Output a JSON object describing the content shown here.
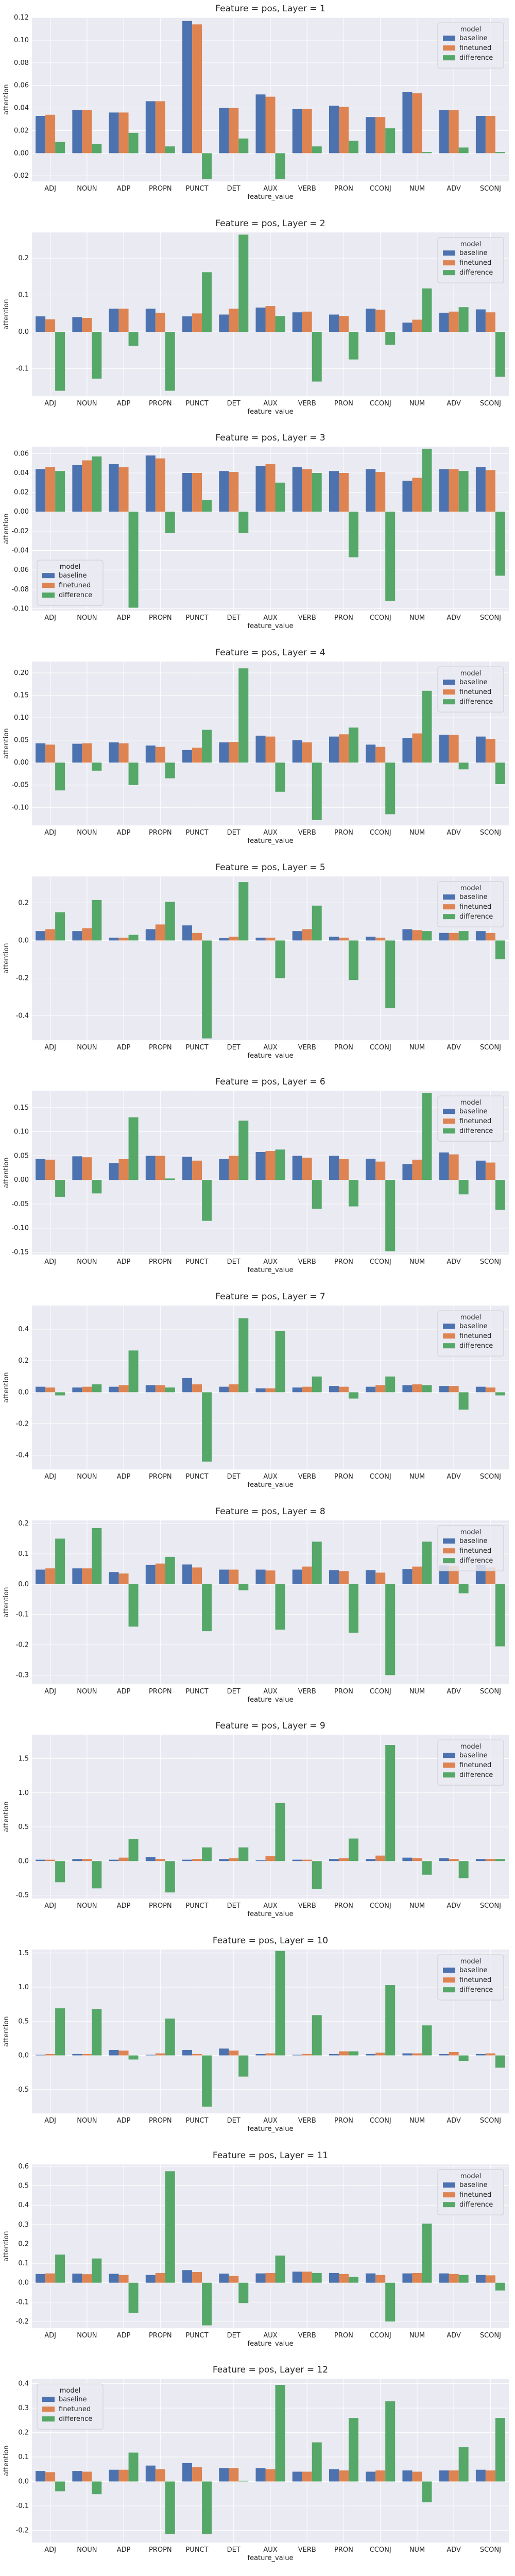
{
  "colors": {
    "baseline": "#4c72b0",
    "finetuned": "#dd8452",
    "difference": "#55a868"
  },
  "legend_title": "model",
  "chart_data": [
    {
      "type": "bar",
      "title": "Feature = pos, Layer = 1",
      "xlabel": "feature_value",
      "ylabel": "attention",
      "categories": [
        "ADJ",
        "NOUN",
        "ADP",
        "PROPN",
        "PUNCT",
        "DET",
        "AUX",
        "VERB",
        "PRON",
        "CCONJ",
        "NUM",
        "ADV",
        "SCONJ"
      ],
      "ylim": [
        -0.025,
        0.12
      ],
      "yticks": [
        -0.02,
        0.0,
        0.02,
        0.04,
        0.06,
        0.08,
        0.1,
        0.12
      ],
      "grid": true,
      "legend_position": "top-right",
      "series": [
        {
          "name": "baseline",
          "values": [
            0.033,
            0.038,
            0.036,
            0.046,
            0.117,
            0.04,
            0.052,
            0.039,
            0.042,
            0.032,
            0.054,
            0.038,
            0.033
          ]
        },
        {
          "name": "finetuned",
          "values": [
            0.034,
            0.038,
            0.036,
            0.046,
            0.114,
            0.04,
            0.05,
            0.039,
            0.041,
            0.032,
            0.053,
            0.038,
            0.033
          ]
        },
        {
          "name": "difference",
          "values": [
            0.01,
            0.008,
            0.018,
            0.006,
            -0.023,
            0.013,
            -0.023,
            0.006,
            0.011,
            0.022,
            0.001,
            0.005,
            0.001
          ]
        }
      ]
    },
    {
      "type": "bar",
      "title": "Feature = pos, Layer = 2",
      "xlabel": "feature_value",
      "ylabel": "attention",
      "categories": [
        "ADJ",
        "NOUN",
        "ADP",
        "PROPN",
        "PUNCT",
        "DET",
        "AUX",
        "VERB",
        "PRON",
        "CCONJ",
        "NUM",
        "ADV",
        "SCONJ"
      ],
      "ylim": [
        -0.175,
        0.27
      ],
      "yticks": [
        -0.1,
        0.0,
        0.1,
        0.2
      ],
      "grid": true,
      "legend_position": "top-right",
      "series": [
        {
          "name": "baseline",
          "values": [
            0.042,
            0.04,
            0.063,
            0.063,
            0.042,
            0.047,
            0.066,
            0.053,
            0.047,
            0.063,
            0.025,
            0.052,
            0.061
          ]
        },
        {
          "name": "finetuned",
          "values": [
            0.034,
            0.038,
            0.063,
            0.052,
            0.05,
            0.063,
            0.07,
            0.055,
            0.043,
            0.06,
            0.033,
            0.055,
            0.053
          ]
        },
        {
          "name": "difference",
          "values": [
            -0.16,
            -0.127,
            -0.038,
            -0.16,
            0.162,
            0.264,
            0.043,
            -0.135,
            -0.075,
            -0.035,
            0.118,
            0.067,
            -0.122
          ]
        }
      ]
    },
    {
      "type": "bar",
      "title": "Feature = pos, Layer = 3",
      "xlabel": "feature_value",
      "ylabel": "attention",
      "categories": [
        "ADJ",
        "NOUN",
        "ADP",
        "PROPN",
        "PUNCT",
        "DET",
        "AUX",
        "VERB",
        "PRON",
        "CCONJ",
        "NUM",
        "ADV",
        "SCONJ"
      ],
      "ylim": [
        -0.102,
        0.067
      ],
      "yticks": [
        -0.1,
        -0.08,
        -0.06,
        -0.04,
        -0.02,
        0.0,
        0.02,
        0.04,
        0.06
      ],
      "grid": true,
      "legend_position": "bottom-left",
      "series": [
        {
          "name": "baseline",
          "values": [
            0.044,
            0.048,
            0.049,
            0.058,
            0.04,
            0.042,
            0.047,
            0.046,
            0.042,
            0.044,
            0.032,
            0.044,
            0.046
          ]
        },
        {
          "name": "finetuned",
          "values": [
            0.046,
            0.053,
            0.046,
            0.055,
            0.04,
            0.041,
            0.049,
            0.044,
            0.04,
            0.041,
            0.035,
            0.044,
            0.043
          ]
        },
        {
          "name": "difference",
          "values": [
            0.042,
            0.057,
            -0.099,
            -0.022,
            0.012,
            -0.022,
            0.03,
            0.04,
            -0.047,
            -0.092,
            0.065,
            0.042,
            -0.066
          ]
        }
      ]
    },
    {
      "type": "bar",
      "title": "Feature = pos, Layer = 4",
      "xlabel": "feature_value",
      "ylabel": "attention",
      "categories": [
        "ADJ",
        "NOUN",
        "ADP",
        "PROPN",
        "PUNCT",
        "DET",
        "AUX",
        "VERB",
        "PRON",
        "CCONJ",
        "NUM",
        "ADV",
        "SCONJ"
      ],
      "ylim": [
        -0.14,
        0.225
      ],
      "yticks": [
        -0.1,
        -0.05,
        0.0,
        0.05,
        0.1,
        0.15,
        0.2
      ],
      "grid": true,
      "legend_position": "top-right",
      "series": [
        {
          "name": "baseline",
          "values": [
            0.043,
            0.042,
            0.045,
            0.038,
            0.028,
            0.045,
            0.06,
            0.05,
            0.058,
            0.04,
            0.055,
            0.062,
            0.058
          ]
        },
        {
          "name": "finetuned",
          "values": [
            0.04,
            0.043,
            0.043,
            0.035,
            0.033,
            0.046,
            0.058,
            0.045,
            0.063,
            0.035,
            0.065,
            0.062,
            0.053
          ]
        },
        {
          "name": "difference",
          "values": [
            -0.062,
            -0.018,
            -0.05,
            -0.035,
            0.073,
            0.21,
            -0.065,
            -0.128,
            0.078,
            -0.115,
            0.16,
            -0.015,
            -0.048
          ]
        }
      ]
    },
    {
      "type": "bar",
      "title": "Feature = pos, Layer = 5",
      "xlabel": "feature_value",
      "ylabel": "attention",
      "categories": [
        "ADJ",
        "NOUN",
        "ADP",
        "PROPN",
        "PUNCT",
        "DET",
        "AUX",
        "VERB",
        "PRON",
        "CCONJ",
        "NUM",
        "ADV",
        "SCONJ"
      ],
      "ylim": [
        -0.53,
        0.34
      ],
      "yticks": [
        -0.4,
        -0.2,
        0.0,
        0.2
      ],
      "grid": true,
      "legend_position": "top-right",
      "series": [
        {
          "name": "baseline",
          "values": [
            0.05,
            0.05,
            0.015,
            0.06,
            0.08,
            0.012,
            0.015,
            0.05,
            0.02,
            0.02,
            0.06,
            0.04,
            0.05
          ]
        },
        {
          "name": "finetuned",
          "values": [
            0.06,
            0.065,
            0.015,
            0.085,
            0.04,
            0.02,
            0.015,
            0.06,
            0.015,
            0.015,
            0.055,
            0.04,
            0.04
          ]
        },
        {
          "name": "difference",
          "values": [
            0.15,
            0.215,
            0.03,
            0.205,
            -0.52,
            0.31,
            -0.2,
            0.185,
            -0.21,
            -0.36,
            0.05,
            0.05,
            -0.1
          ]
        }
      ]
    },
    {
      "type": "bar",
      "title": "Feature = pos, Layer = 6",
      "xlabel": "feature_value",
      "ylabel": "attention",
      "categories": [
        "ADJ",
        "NOUN",
        "ADP",
        "PROPN",
        "PUNCT",
        "DET",
        "AUX",
        "VERB",
        "PRON",
        "CCONJ",
        "NUM",
        "ADV",
        "SCONJ"
      ],
      "ylim": [
        -0.155,
        0.185
      ],
      "yticks": [
        -0.15,
        -0.1,
        -0.05,
        0.0,
        0.05,
        0.1,
        0.15
      ],
      "grid": true,
      "legend_position": "top-right",
      "series": [
        {
          "name": "baseline",
          "values": [
            0.043,
            0.049,
            0.035,
            0.05,
            0.048,
            0.043,
            0.058,
            0.05,
            0.05,
            0.044,
            0.033,
            0.057,
            0.04
          ]
        },
        {
          "name": "finetuned",
          "values": [
            0.042,
            0.047,
            0.043,
            0.05,
            0.04,
            0.05,
            0.06,
            0.046,
            0.043,
            0.038,
            0.042,
            0.053,
            0.036
          ]
        },
        {
          "name": "difference",
          "values": [
            -0.035,
            -0.028,
            0.13,
            0.003,
            -0.085,
            0.123,
            0.063,
            -0.06,
            -0.055,
            -0.148,
            0.18,
            -0.03,
            -0.062
          ]
        }
      ]
    },
    {
      "type": "bar",
      "title": "Feature = pos, Layer = 7",
      "xlabel": "feature_value",
      "ylabel": "attention",
      "categories": [
        "ADJ",
        "NOUN",
        "ADP",
        "PROPN",
        "PUNCT",
        "DET",
        "AUX",
        "VERB",
        "PRON",
        "CCONJ",
        "NUM",
        "ADV",
        "SCONJ"
      ],
      "ylim": [
        -0.49,
        0.55
      ],
      "yticks": [
        -0.4,
        -0.2,
        0.0,
        0.2,
        0.4
      ],
      "grid": true,
      "legend_position": "top-right",
      "series": [
        {
          "name": "baseline",
          "values": [
            0.035,
            0.03,
            0.035,
            0.045,
            0.09,
            0.035,
            0.025,
            0.03,
            0.04,
            0.035,
            0.045,
            0.04,
            0.035
          ]
        },
        {
          "name": "finetuned",
          "values": [
            0.03,
            0.035,
            0.045,
            0.045,
            0.05,
            0.05,
            0.025,
            0.035,
            0.035,
            0.045,
            0.05,
            0.04,
            0.03
          ]
        },
        {
          "name": "difference",
          "values": [
            -0.02,
            0.05,
            0.265,
            0.03,
            -0.44,
            0.47,
            0.39,
            0.1,
            -0.04,
            0.1,
            0.045,
            -0.11,
            -0.02
          ]
        }
      ]
    },
    {
      "type": "bar",
      "title": "Feature = pos, Layer = 8",
      "xlabel": "feature_value",
      "ylabel": "attention",
      "categories": [
        "ADJ",
        "NOUN",
        "ADP",
        "PROPN",
        "PUNCT",
        "DET",
        "AUX",
        "VERB",
        "PRON",
        "CCONJ",
        "NUM",
        "ADV",
        "SCONJ"
      ],
      "ylim": [
        -0.33,
        0.21
      ],
      "yticks": [
        -0.3,
        -0.2,
        -0.1,
        0.0,
        0.1,
        0.2
      ],
      "grid": true,
      "legend_position": "top-right",
      "series": [
        {
          "name": "baseline",
          "values": [
            0.048,
            0.052,
            0.04,
            0.063,
            0.065,
            0.048,
            0.048,
            0.048,
            0.046,
            0.046,
            0.05,
            0.062,
            0.063
          ]
        },
        {
          "name": "finetuned",
          "values": [
            0.052,
            0.052,
            0.035,
            0.068,
            0.055,
            0.048,
            0.045,
            0.058,
            0.043,
            0.038,
            0.058,
            0.06,
            0.055
          ]
        },
        {
          "name": "difference",
          "values": [
            0.15,
            0.185,
            -0.14,
            0.09,
            -0.155,
            -0.02,
            -0.15,
            0.14,
            -0.16,
            -0.3,
            0.14,
            -0.03,
            -0.205
          ]
        }
      ]
    },
    {
      "type": "bar",
      "title": "Feature = pos, Layer = 9",
      "xlabel": "feature_value",
      "ylabel": "attention",
      "categories": [
        "ADJ",
        "NOUN",
        "ADP",
        "PROPN",
        "PUNCT",
        "DET",
        "AUX",
        "VERB",
        "PRON",
        "CCONJ",
        "NUM",
        "ADV",
        "SCONJ"
      ],
      "ylim": [
        -0.55,
        1.85
      ],
      "yticks": [
        -0.5,
        0.0,
        0.5,
        1.0,
        1.5
      ],
      "grid": true,
      "legend_position": "top-right",
      "series": [
        {
          "name": "baseline",
          "values": [
            0.02,
            0.03,
            0.02,
            0.06,
            0.02,
            0.03,
            0.01,
            0.02,
            0.03,
            0.03,
            0.05,
            0.04,
            0.03
          ]
        },
        {
          "name": "finetuned",
          "values": [
            0.02,
            0.03,
            0.05,
            0.03,
            0.03,
            0.04,
            0.07,
            0.02,
            0.04,
            0.08,
            0.04,
            0.03,
            0.03
          ]
        },
        {
          "name": "difference",
          "values": [
            -0.31,
            -0.4,
            0.32,
            -0.46,
            0.2,
            0.2,
            0.85,
            -0.41,
            0.33,
            1.7,
            -0.2,
            -0.25,
            0.03
          ]
        }
      ]
    },
    {
      "type": "bar",
      "title": "Feature = pos, Layer = 10",
      "xlabel": "feature_value",
      "ylabel": "attention",
      "categories": [
        "ADJ",
        "NOUN",
        "ADP",
        "PROPN",
        "PUNCT",
        "DET",
        "AUX",
        "VERB",
        "PRON",
        "CCONJ",
        "NUM",
        "ADV",
        "SCONJ"
      ],
      "ylim": [
        -0.85,
        1.55
      ],
      "yticks": [
        -0.5,
        0.0,
        0.5,
        1.0,
        1.5
      ],
      "grid": true,
      "legend_position": "top-right",
      "series": [
        {
          "name": "baseline",
          "values": [
            0.01,
            0.02,
            0.08,
            0.01,
            0.08,
            0.1,
            0.02,
            0.01,
            0.02,
            0.02,
            0.03,
            0.02,
            0.02
          ]
        },
        {
          "name": "finetuned",
          "values": [
            0.02,
            0.02,
            0.07,
            0.03,
            0.02,
            0.07,
            0.03,
            0.02,
            0.06,
            0.04,
            0.03,
            0.05,
            0.03
          ]
        },
        {
          "name": "difference",
          "values": [
            0.69,
            0.68,
            -0.06,
            0.54,
            -0.75,
            -0.31,
            1.53,
            0.59,
            0.06,
            1.03,
            0.44,
            -0.08,
            -0.18
          ]
        }
      ]
    },
    {
      "type": "bar",
      "title": "Feature = pos, Layer = 11",
      "xlabel": "feature_value",
      "ylabel": "attention",
      "categories": [
        "ADJ",
        "NOUN",
        "ADP",
        "PROPN",
        "PUNCT",
        "DET",
        "AUX",
        "VERB",
        "PRON",
        "CCONJ",
        "NUM",
        "ADV",
        "SCONJ"
      ],
      "ylim": [
        -0.235,
        0.61
      ],
      "yticks": [
        -0.2,
        -0.1,
        0.0,
        0.1,
        0.2,
        0.3,
        0.4,
        0.5,
        0.6
      ],
      "grid": true,
      "legend_position": "top-right",
      "series": [
        {
          "name": "baseline",
          "values": [
            0.045,
            0.047,
            0.046,
            0.04,
            0.065,
            0.047,
            0.048,
            0.057,
            0.05,
            0.048,
            0.048,
            0.048,
            0.04
          ]
        },
        {
          "name": "finetuned",
          "values": [
            0.048,
            0.044,
            0.04,
            0.05,
            0.055,
            0.035,
            0.05,
            0.057,
            0.045,
            0.04,
            0.05,
            0.045,
            0.038
          ]
        },
        {
          "name": "difference",
          "values": [
            0.145,
            0.125,
            -0.155,
            0.575,
            -0.22,
            -0.105,
            0.14,
            0.05,
            0.03,
            -0.2,
            0.305,
            0.04,
            -0.04
          ]
        }
      ]
    },
    {
      "type": "bar",
      "title": "Feature = pos, Layer = 12",
      "xlabel": "feature_value",
      "ylabel": "attention",
      "categories": [
        "ADJ",
        "NOUN",
        "ADP",
        "PROPN",
        "PUNCT",
        "DET",
        "AUX",
        "VERB",
        "PRON",
        "CCONJ",
        "NUM",
        "ADV",
        "SCONJ"
      ],
      "ylim": [
        -0.25,
        0.42
      ],
      "yticks": [
        -0.2,
        -0.1,
        0.0,
        0.1,
        0.2,
        0.3,
        0.4
      ],
      "grid": true,
      "legend_position": "top-left",
      "series": [
        {
          "name": "baseline",
          "values": [
            0.043,
            0.043,
            0.048,
            0.065,
            0.075,
            0.055,
            0.055,
            0.04,
            0.05,
            0.04,
            0.045,
            0.045,
            0.048
          ]
        },
        {
          "name": "finetuned",
          "values": [
            0.038,
            0.04,
            0.048,
            0.05,
            0.058,
            0.055,
            0.05,
            0.04,
            0.045,
            0.045,
            0.04,
            0.045,
            0.045
          ]
        },
        {
          "name": "difference",
          "values": [
            -0.04,
            -0.052,
            0.118,
            -0.215,
            -0.215,
            0.003,
            0.395,
            0.16,
            0.26,
            0.328,
            -0.085,
            0.14,
            0.26
          ]
        }
      ]
    }
  ]
}
